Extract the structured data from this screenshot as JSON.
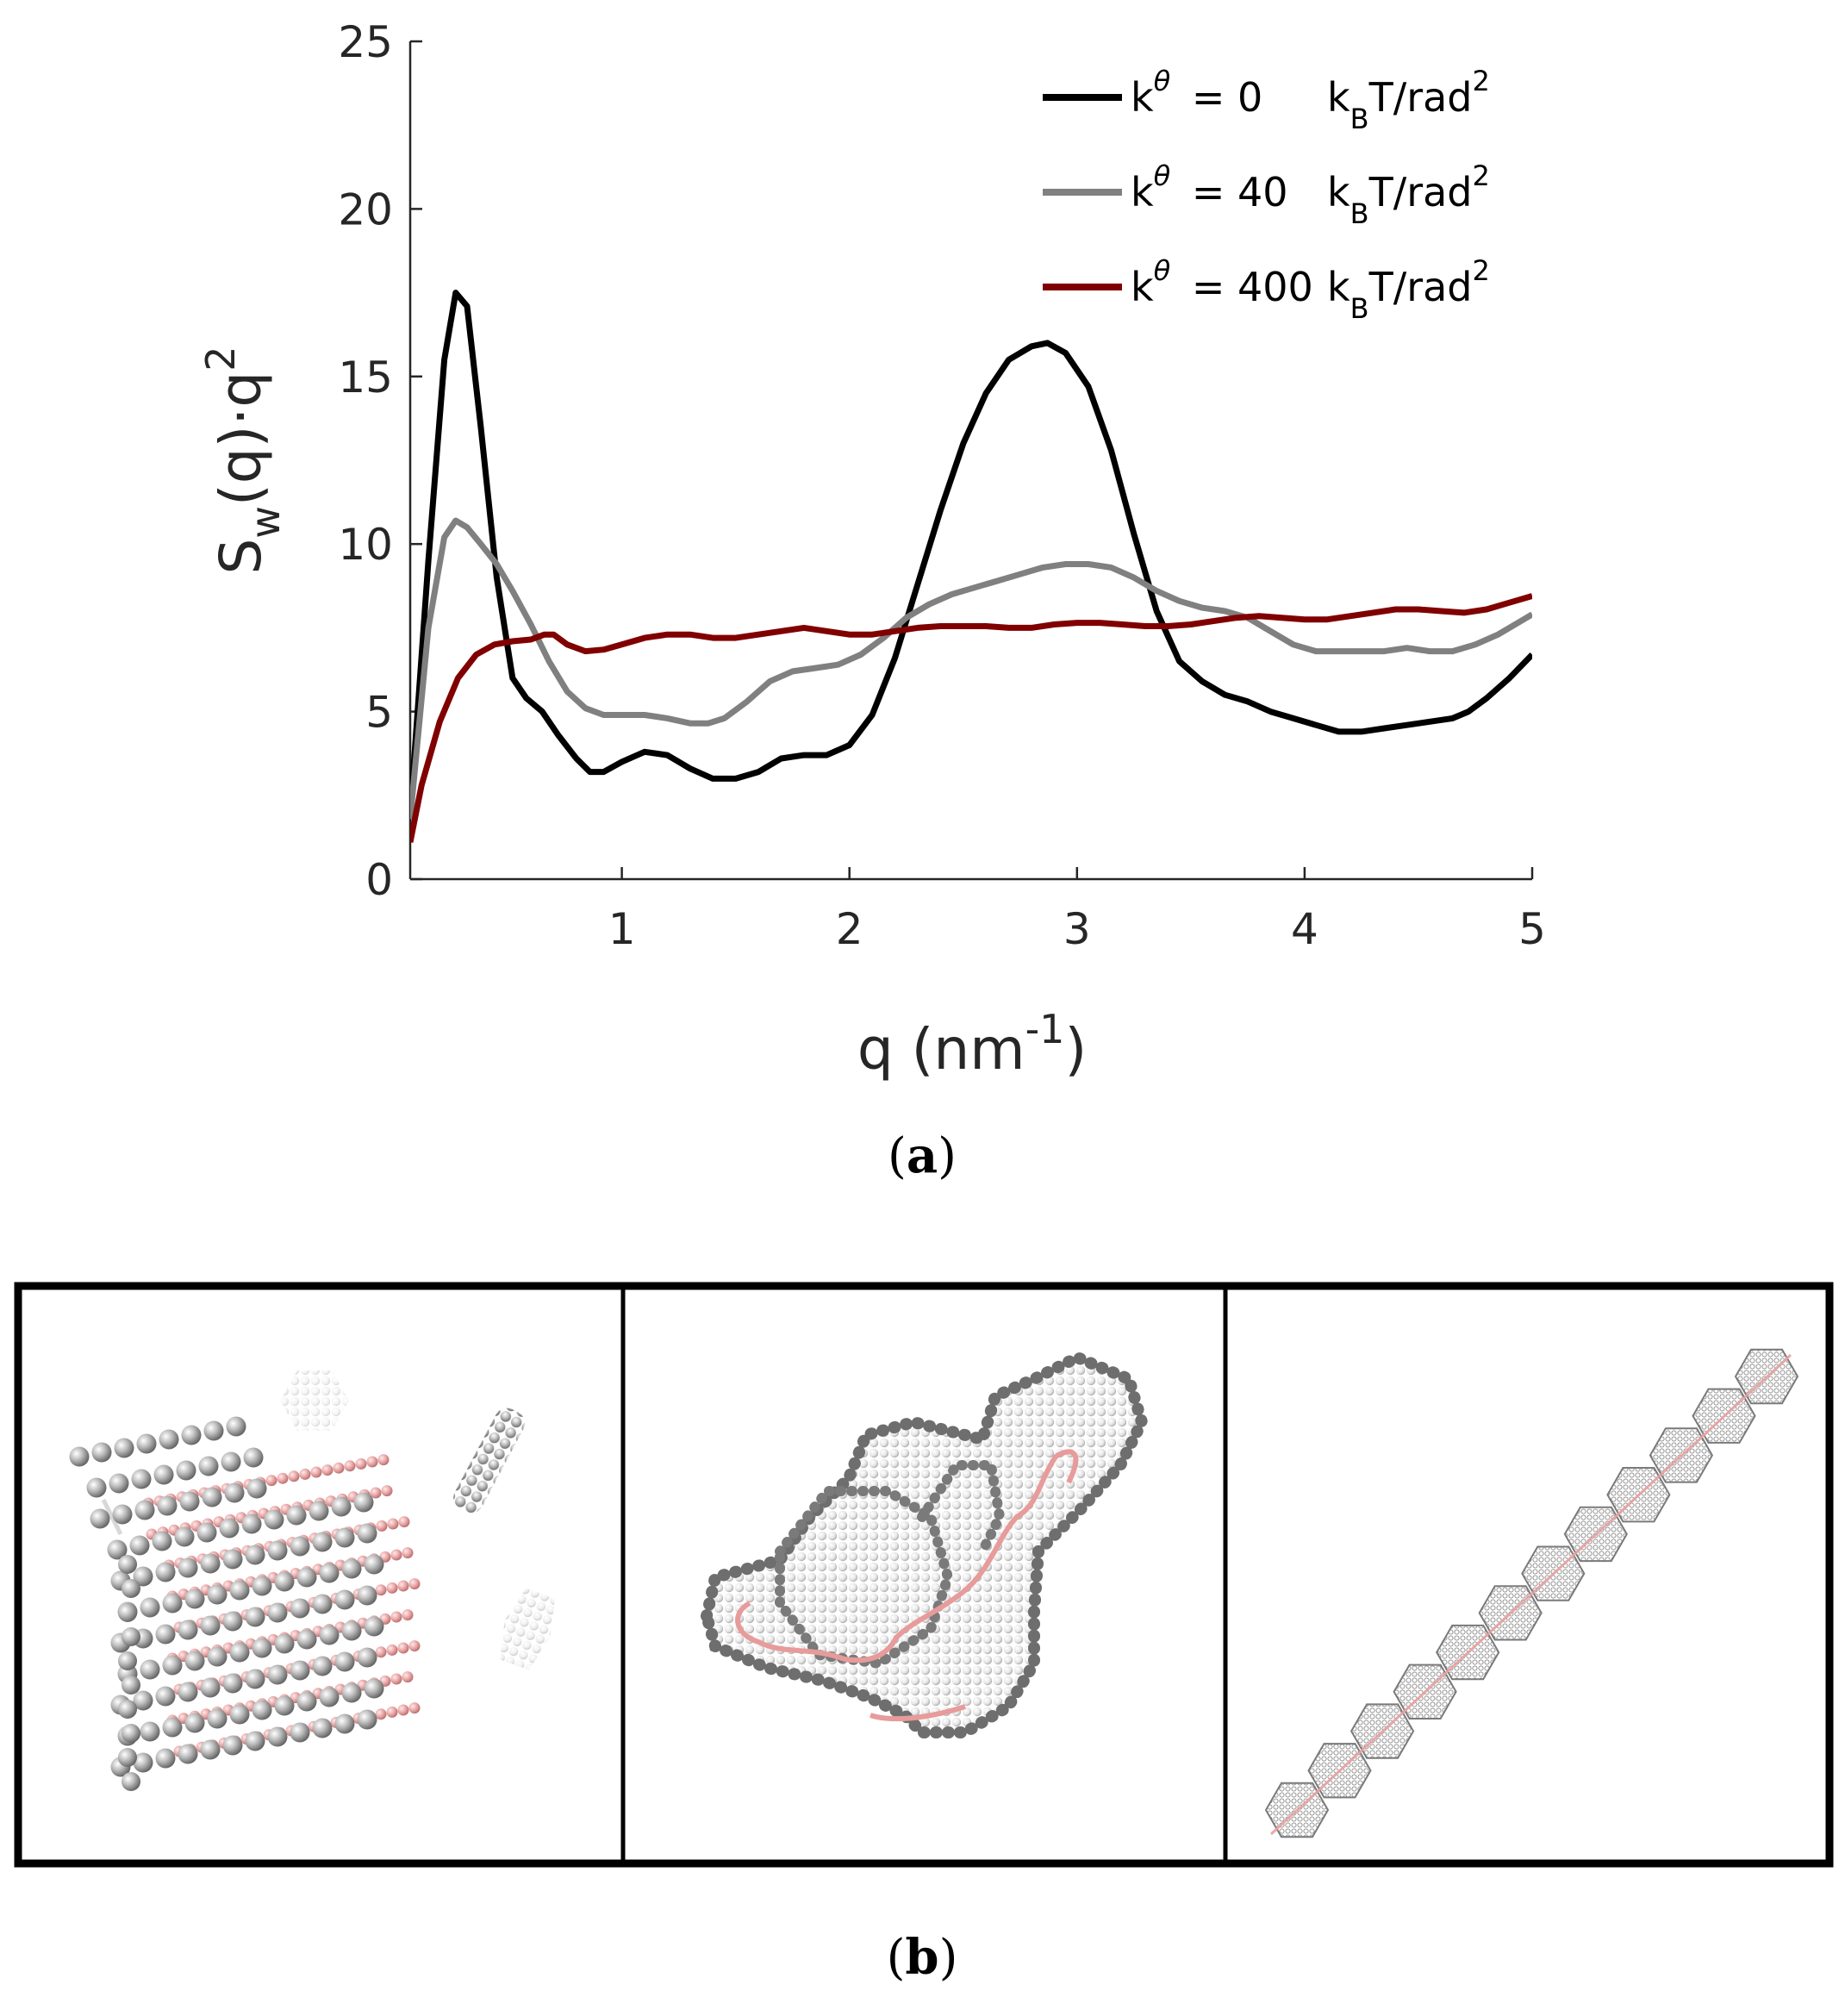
{
  "chart_data": {
    "type": "line",
    "xlabel": "q (nm",
    "xlabel_sup": "-1",
    "xlabel_close": ")",
    "ylabel_main": "S",
    "ylabel_sub": "w",
    "ylabel_rest": "(q)·q",
    "ylabel_sup": "2",
    "xlim": [
      0.07,
      5.0
    ],
    "ylim": [
      0,
      25
    ],
    "xticks": [
      1,
      2,
      3,
      4,
      5
    ],
    "yticks": [
      0,
      5,
      10,
      15,
      20,
      25
    ],
    "grid": false,
    "legend_position": "top-right",
    "series": [
      {
        "k_label": "k",
        "k_sup": "θ",
        "value_text": "= 0",
        "unit_kb": "k",
        "unit_kb_sub": "B",
        "unit_rest": "T/rad",
        "unit_sup": "2",
        "color": "#000000",
        "points": [
          [
            0.07,
            1.9
          ],
          [
            0.15,
            9.5
          ],
          [
            0.22,
            15.5
          ],
          [
            0.27,
            17.5
          ],
          [
            0.32,
            17.1
          ],
          [
            0.38,
            13.5
          ],
          [
            0.45,
            9.0
          ],
          [
            0.52,
            6.0
          ],
          [
            0.58,
            5.4
          ],
          [
            0.65,
            5.0
          ],
          [
            0.72,
            4.3
          ],
          [
            0.8,
            3.6
          ],
          [
            0.86,
            3.2
          ],
          [
            0.92,
            3.2
          ],
          [
            1.0,
            3.5
          ],
          [
            1.1,
            3.8
          ],
          [
            1.2,
            3.7
          ],
          [
            1.3,
            3.3
          ],
          [
            1.4,
            3.0
          ],
          [
            1.5,
            3.0
          ],
          [
            1.6,
            3.2
          ],
          [
            1.7,
            3.6
          ],
          [
            1.8,
            3.7
          ],
          [
            1.9,
            3.7
          ],
          [
            2.0,
            4.0
          ],
          [
            2.1,
            4.9
          ],
          [
            2.2,
            6.6
          ],
          [
            2.3,
            8.8
          ],
          [
            2.4,
            11.0
          ],
          [
            2.5,
            13.0
          ],
          [
            2.6,
            14.5
          ],
          [
            2.7,
            15.5
          ],
          [
            2.8,
            15.9
          ],
          [
            2.87,
            16.0
          ],
          [
            2.95,
            15.7
          ],
          [
            3.05,
            14.7
          ],
          [
            3.15,
            12.8
          ],
          [
            3.25,
            10.3
          ],
          [
            3.35,
            8.0
          ],
          [
            3.45,
            6.5
          ],
          [
            3.55,
            5.9
          ],
          [
            3.65,
            5.5
          ],
          [
            3.75,
            5.3
          ],
          [
            3.85,
            5.0
          ],
          [
            3.95,
            4.8
          ],
          [
            4.05,
            4.6
          ],
          [
            4.15,
            4.4
          ],
          [
            4.25,
            4.4
          ],
          [
            4.35,
            4.5
          ],
          [
            4.45,
            4.6
          ],
          [
            4.55,
            4.7
          ],
          [
            4.65,
            4.8
          ],
          [
            4.72,
            5.0
          ],
          [
            4.8,
            5.4
          ],
          [
            4.9,
            6.0
          ],
          [
            5.0,
            6.7
          ]
        ]
      },
      {
        "k_label": "k",
        "k_sup": "θ",
        "value_text": "= 40",
        "unit_kb": "k",
        "unit_kb_sub": "B",
        "unit_rest": "T/rad",
        "unit_sup": "2",
        "color": "#808080",
        "points": [
          [
            0.07,
            1.8
          ],
          [
            0.15,
            7.5
          ],
          [
            0.22,
            10.2
          ],
          [
            0.27,
            10.7
          ],
          [
            0.32,
            10.5
          ],
          [
            0.38,
            10.0
          ],
          [
            0.45,
            9.4
          ],
          [
            0.52,
            8.6
          ],
          [
            0.6,
            7.6
          ],
          [
            0.68,
            6.5
          ],
          [
            0.76,
            5.6
          ],
          [
            0.84,
            5.1
          ],
          [
            0.92,
            4.9
          ],
          [
            1.0,
            4.9
          ],
          [
            1.1,
            4.9
          ],
          [
            1.2,
            4.8
          ],
          [
            1.3,
            4.65
          ],
          [
            1.38,
            4.65
          ],
          [
            1.45,
            4.8
          ],
          [
            1.55,
            5.3
          ],
          [
            1.65,
            5.9
          ],
          [
            1.75,
            6.2
          ],
          [
            1.85,
            6.3
          ],
          [
            1.95,
            6.4
          ],
          [
            2.05,
            6.7
          ],
          [
            2.15,
            7.2
          ],
          [
            2.25,
            7.8
          ],
          [
            2.35,
            8.2
          ],
          [
            2.45,
            8.5
          ],
          [
            2.55,
            8.7
          ],
          [
            2.65,
            8.9
          ],
          [
            2.75,
            9.1
          ],
          [
            2.85,
            9.3
          ],
          [
            2.95,
            9.4
          ],
          [
            3.05,
            9.4
          ],
          [
            3.15,
            9.3
          ],
          [
            3.25,
            9.0
          ],
          [
            3.35,
            8.6
          ],
          [
            3.45,
            8.3
          ],
          [
            3.55,
            8.1
          ],
          [
            3.65,
            8.0
          ],
          [
            3.75,
            7.8
          ],
          [
            3.85,
            7.4
          ],
          [
            3.95,
            7.0
          ],
          [
            4.05,
            6.8
          ],
          [
            4.15,
            6.8
          ],
          [
            4.25,
            6.8
          ],
          [
            4.35,
            6.8
          ],
          [
            4.45,
            6.9
          ],
          [
            4.55,
            6.8
          ],
          [
            4.65,
            6.8
          ],
          [
            4.75,
            7.0
          ],
          [
            4.85,
            7.3
          ],
          [
            4.95,
            7.7
          ],
          [
            5.0,
            7.9
          ]
        ]
      },
      {
        "k_label": "k",
        "k_sup": "θ",
        "value_text": "= 400",
        "unit_kb": "k",
        "unit_kb_sub": "B",
        "unit_rest": "T/rad",
        "unit_sup": "2",
        "color": "#800000",
        "points": [
          [
            0.07,
            1.1
          ],
          [
            0.12,
            2.8
          ],
          [
            0.2,
            4.7
          ],
          [
            0.28,
            6.0
          ],
          [
            0.36,
            6.7
          ],
          [
            0.44,
            7.0
          ],
          [
            0.52,
            7.1
          ],
          [
            0.6,
            7.15
          ],
          [
            0.66,
            7.3
          ],
          [
            0.7,
            7.3
          ],
          [
            0.76,
            7.0
          ],
          [
            0.84,
            6.8
          ],
          [
            0.92,
            6.85
          ],
          [
            1.0,
            7.0
          ],
          [
            1.1,
            7.2
          ],
          [
            1.2,
            7.3
          ],
          [
            1.3,
            7.3
          ],
          [
            1.4,
            7.2
          ],
          [
            1.5,
            7.2
          ],
          [
            1.6,
            7.3
          ],
          [
            1.7,
            7.4
          ],
          [
            1.8,
            7.5
          ],
          [
            1.9,
            7.4
          ],
          [
            2.0,
            7.3
          ],
          [
            2.1,
            7.3
          ],
          [
            2.2,
            7.4
          ],
          [
            2.3,
            7.5
          ],
          [
            2.4,
            7.55
          ],
          [
            2.5,
            7.55
          ],
          [
            2.6,
            7.55
          ],
          [
            2.7,
            7.5
          ],
          [
            2.8,
            7.5
          ],
          [
            2.9,
            7.6
          ],
          [
            3.0,
            7.65
          ],
          [
            3.1,
            7.65
          ],
          [
            3.2,
            7.6
          ],
          [
            3.3,
            7.55
          ],
          [
            3.4,
            7.55
          ],
          [
            3.5,
            7.6
          ],
          [
            3.6,
            7.7
          ],
          [
            3.7,
            7.8
          ],
          [
            3.8,
            7.85
          ],
          [
            3.9,
            7.8
          ],
          [
            4.0,
            7.75
          ],
          [
            4.1,
            7.75
          ],
          [
            4.2,
            7.85
          ],
          [
            4.3,
            7.95
          ],
          [
            4.4,
            8.05
          ],
          [
            4.5,
            8.05
          ],
          [
            4.6,
            8.0
          ],
          [
            4.7,
            7.95
          ],
          [
            4.8,
            8.05
          ],
          [
            4.9,
            8.25
          ],
          [
            5.0,
            8.45
          ]
        ]
      }
    ]
  },
  "figure": {
    "label_a_open": "(",
    "label_a_letter": "a",
    "label_a_close": ")",
    "label_b_open": "(",
    "label_b_letter": "b",
    "label_b_close": ")"
  },
  "snapshots": {
    "sphere_color": "#9a9a9a",
    "chain_color": "#e8a0a0"
  }
}
